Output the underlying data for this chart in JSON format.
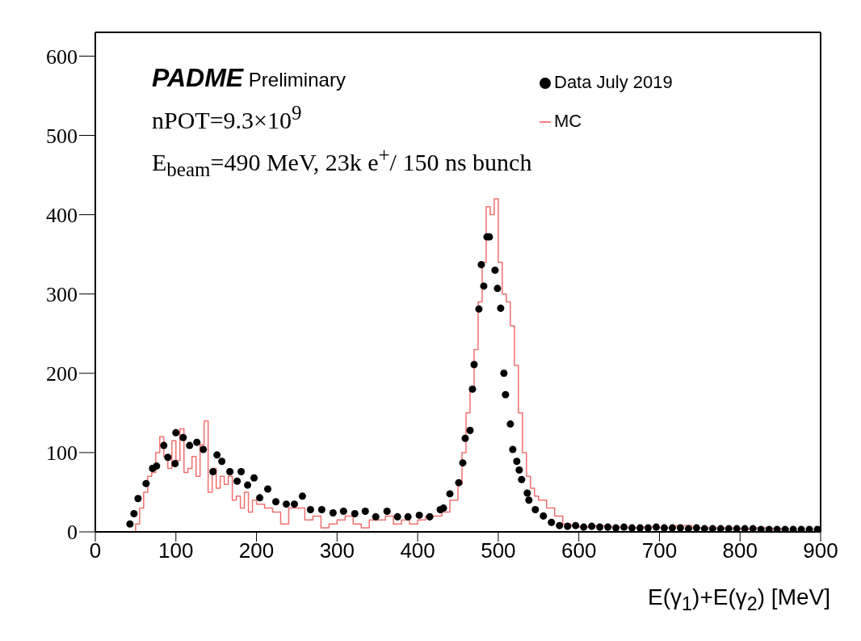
{
  "chart_data": {
    "type": "scatter",
    "xlabel": "E(γ$_{1}$)+E(γ$_{2}$) [MeV]",
    "annotations": [
      "PADME Preliminary",
      "nPOT=9.3×10$^{9}$",
      "E$_{beam}$=490 MeV, 23k e$^{+}$/ 150 ns bunch"
    ],
    "xlim": [
      0,
      900
    ],
    "xticks": [
      0,
      100,
      200,
      300,
      400,
      500,
      600,
      700,
      800,
      900
    ],
    "ylim": [
      0,
      630
    ],
    "yticks": [
      0,
      100,
      200,
      300,
      400,
      500,
      600
    ],
    "legend": "top right",
    "series": [
      {
        "name": "Data July 2019",
        "marker": "circle",
        "color": "#000000",
        "x": [
          43,
          48,
          53,
          63,
          71,
          76,
          85,
          90,
          99,
          100,
          109,
          117,
          126,
          134,
          146,
          151,
          157,
          167,
          176,
          181,
          189,
          197,
          204,
          214,
          224,
          237,
          247,
          257,
          267,
          281,
          295,
          308,
          322,
          335,
          348,
          362,
          375,
          388,
          402,
          415,
          428,
          432,
          440,
          451,
          456,
          459,
          465,
          468,
          470,
          476,
          479,
          482,
          486,
          489,
          496,
          499,
          503,
          507,
          509,
          515,
          518,
          523,
          526,
          529,
          536,
          538,
          546,
          556,
          566,
          576,
          586,
          596,
          606,
          616,
          626,
          636,
          646,
          656,
          666,
          676,
          686,
          696,
          706,
          716,
          726,
          736,
          746,
          756,
          766,
          776,
          786,
          796,
          806,
          816,
          826,
          836,
          846,
          856,
          866,
          876,
          886,
          896
        ],
        "values": [
          10,
          23,
          42,
          61,
          80,
          83,
          109,
          94,
          86,
          125,
          119,
          109,
          113,
          104,
          76,
          97,
          89,
          76,
          64,
          76,
          59,
          68,
          43,
          54,
          38,
          35,
          35,
          45,
          28,
          28,
          24,
          26,
          23,
          26,
          19,
          26,
          19,
          19,
          21,
          19,
          28,
          30,
          48,
          62,
          87,
          118,
          128,
          180,
          211,
          281,
          337,
          310,
          372,
          372,
          330,
          307,
          282,
          200,
          173,
          136,
          104,
          89,
          78,
          66,
          49,
          40,
          28,
          20,
          12,
          8,
          7,
          8,
          6,
          7,
          6,
          6,
          5,
          6,
          5,
          5,
          5,
          6,
          5,
          5,
          5,
          4,
          5,
          4,
          4,
          4,
          4,
          4,
          4,
          4,
          3,
          3,
          3,
          3,
          3,
          3,
          3,
          3
        ]
      },
      {
        "name": "MC",
        "type": "step",
        "marker": "none",
        "color": "#f07070",
        "x": [
          0,
          40,
          50,
          55,
          60,
          65,
          70,
          75,
          80,
          85,
          90,
          95,
          100,
          105,
          110,
          115,
          120,
          125,
          130,
          135,
          140,
          145,
          150,
          155,
          160,
          165,
          170,
          175,
          180,
          185,
          190,
          195,
          200,
          210,
          220,
          230,
          240,
          250,
          260,
          270,
          280,
          290,
          300,
          310,
          320,
          330,
          340,
          350,
          360,
          370,
          380,
          390,
          400,
          410,
          420,
          430,
          440,
          450,
          455,
          460,
          465,
          470,
          475,
          480,
          485,
          490,
          495,
          500,
          505,
          510,
          515,
          520,
          525,
          530,
          535,
          540,
          545,
          550,
          560,
          570,
          580,
          590,
          600,
          620,
          640,
          660,
          680,
          700,
          720,
          740,
          760,
          780,
          800,
          820,
          840,
          860
        ],
        "values": [
          0,
          0,
          10,
          30,
          50,
          70,
          75,
          100,
          120,
          95,
          80,
          115,
          90,
          130,
          75,
          80,
          95,
          70,
          110,
          140,
          50,
          80,
          55,
          70,
          60,
          70,
          40,
          45,
          30,
          50,
          25,
          40,
          35,
          30,
          25,
          10,
          30,
          30,
          15,
          20,
          5,
          10,
          15,
          20,
          10,
          5,
          15,
          15,
          20,
          10,
          15,
          10,
          15,
          20,
          20,
          25,
          40,
          60,
          100,
          150,
          180,
          230,
          290,
          340,
          410,
          400,
          420,
          340,
          300,
          290,
          260,
          210,
          150,
          100,
          70,
          55,
          45,
          40,
          30,
          20,
          10,
          8,
          6,
          8,
          6,
          5,
          6,
          5,
          8,
          5,
          5,
          5,
          4,
          5,
          4,
          3
        ]
      }
    ]
  }
}
